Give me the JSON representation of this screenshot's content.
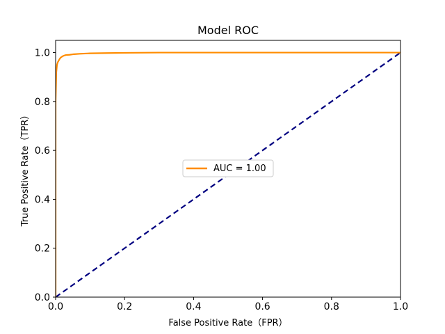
{
  "chart_data": {
    "type": "line",
    "title": "Model ROC",
    "xlabel": "False Positive Rate（FPR）",
    "ylabel": "True Positive Rate（TPR）",
    "xlim": [
      0.0,
      1.0
    ],
    "ylim": [
      0.0,
      1.05
    ],
    "xticks": [
      "0.0",
      "0.2",
      "0.4",
      "0.6",
      "0.8",
      "1.0"
    ],
    "yticks": [
      "0.0",
      "0.2",
      "0.4",
      "0.6",
      "0.8",
      "1.0"
    ],
    "grid": false,
    "legend_position": "center-right",
    "series": [
      {
        "name": "AUC = 1.00",
        "color": "#ff8c00",
        "style": "solid",
        "x": [
          0.0,
          0.0,
          0.002,
          0.004,
          0.006,
          0.008,
          0.01,
          0.012,
          0.015,
          0.02,
          0.025,
          0.03,
          0.04,
          0.05,
          0.07,
          0.1,
          0.15,
          0.2,
          0.3,
          0.5,
          0.7,
          1.0
        ],
        "y": [
          0.0,
          0.8,
          0.92,
          0.95,
          0.96,
          0.965,
          0.97,
          0.975,
          0.98,
          0.985,
          0.988,
          0.99,
          0.991,
          0.993,
          0.995,
          0.997,
          0.998,
          0.999,
          1.0,
          1.0,
          1.0,
          1.0
        ]
      },
      {
        "color": "#000080",
        "style": "dashed",
        "x": [
          0.0,
          1.0
        ],
        "y": [
          0.0,
          1.0
        ]
      }
    ]
  }
}
